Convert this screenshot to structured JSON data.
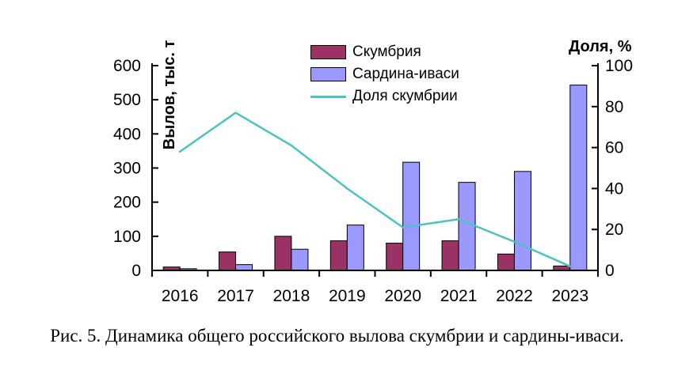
{
  "figure": {
    "caption": "Рис. 5. Динамика общего российского вылова скумбрии и сардины-иваси."
  },
  "chart_data": {
    "type": "bar",
    "subtype": "grouped-bars-with-line-overlay",
    "categories": [
      "2016",
      "2017",
      "2018",
      "2019",
      "2020",
      "2021",
      "2022",
      "2023"
    ],
    "series": [
      {
        "name": "Скумбрия",
        "type": "bar",
        "axis": "left",
        "color": "#993366",
        "values": [
          10,
          54,
          100,
          87,
          80,
          87,
          48,
          13
        ]
      },
      {
        "name": "Сардина-иваси",
        "type": "bar",
        "axis": "left",
        "color": "#9999FF",
        "values": [
          5,
          17,
          62,
          133,
          317,
          258,
          290,
          543
        ]
      },
      {
        "name": "Доля скумбрии",
        "type": "line",
        "axis": "right",
        "color": "#4CC3C0",
        "values": [
          58,
          77,
          61,
          40,
          21,
          25,
          14,
          2
        ]
      }
    ],
    "left_axis": {
      "title": "Вылов, тыс. т",
      "min": 0,
      "max": 600,
      "step": 100,
      "ticks": [
        "0",
        "100",
        "200",
        "300",
        "400",
        "500",
        "600"
      ]
    },
    "right_axis": {
      "title": "Доля, %",
      "min": 0,
      "max": 100,
      "step": 20,
      "ticks": [
        "0",
        "20",
        "40",
        "60",
        "80",
        "100"
      ]
    },
    "legend_position": "top-center-inside",
    "grid": false,
    "plot_background": "#ffffff",
    "axis_color": "#000000"
  }
}
